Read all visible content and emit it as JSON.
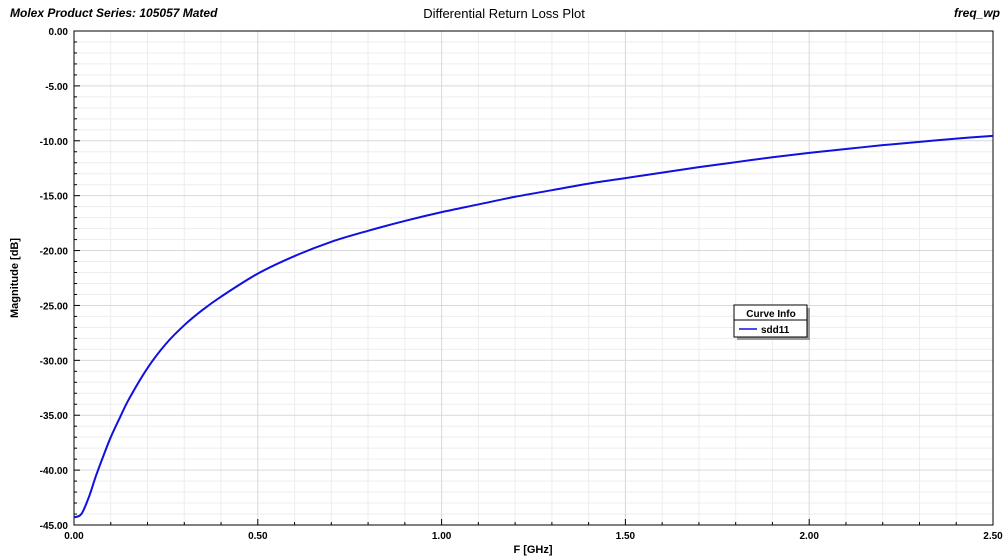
{
  "header": {
    "left_text": "Molex Product Series: 105057 Mated",
    "title": "Differential Return Loss Plot",
    "right_text": "freq_wp"
  },
  "legend": {
    "title": "Curve Info",
    "entries": [
      "sdd11"
    ]
  },
  "colors": {
    "curve": "#1010e0",
    "grid": "#d9d9d9",
    "minor_grid": "#ededed"
  },
  "chart_data": {
    "type": "line",
    "title": "Differential Return Loss Plot",
    "xlabel": "F [GHz]",
    "ylabel": "Magnitude [dB]",
    "xlim": [
      0,
      2.5
    ],
    "ylim": [
      -45,
      0
    ],
    "xticks": [
      "0.00",
      "0.50",
      "1.00",
      "1.50",
      "2.00",
      "2.50"
    ],
    "yticks": [
      "0.00",
      "-5.00",
      "-10.00",
      "-15.00",
      "-20.00",
      "-25.00",
      "-30.00",
      "-35.00",
      "-40.00",
      "-45.00"
    ],
    "grid": true,
    "legend_position": "center-right",
    "series": [
      {
        "name": "sdd11",
        "x": [
          0.0,
          0.02,
          0.04,
          0.06,
          0.08,
          0.1,
          0.125,
          0.15,
          0.2,
          0.25,
          0.3,
          0.35,
          0.4,
          0.5,
          0.6,
          0.7,
          0.8,
          0.9,
          1.0,
          1.1,
          1.2,
          1.3,
          1.4,
          1.5,
          1.6,
          1.7,
          1.8,
          1.9,
          2.0,
          2.1,
          2.2,
          2.3,
          2.4,
          2.5
        ],
        "values": [
          -44.3,
          -44.0,
          -42.5,
          -40.5,
          -38.7,
          -37.0,
          -35.2,
          -33.5,
          -30.7,
          -28.5,
          -26.8,
          -25.4,
          -24.2,
          -22.1,
          -20.5,
          -19.2,
          -18.2,
          -17.3,
          -16.5,
          -15.8,
          -15.1,
          -14.5,
          -13.9,
          -13.4,
          -12.9,
          -12.4,
          -11.95,
          -11.5,
          -11.1,
          -10.75,
          -10.4,
          -10.1,
          -9.8,
          -9.55
        ]
      }
    ]
  }
}
